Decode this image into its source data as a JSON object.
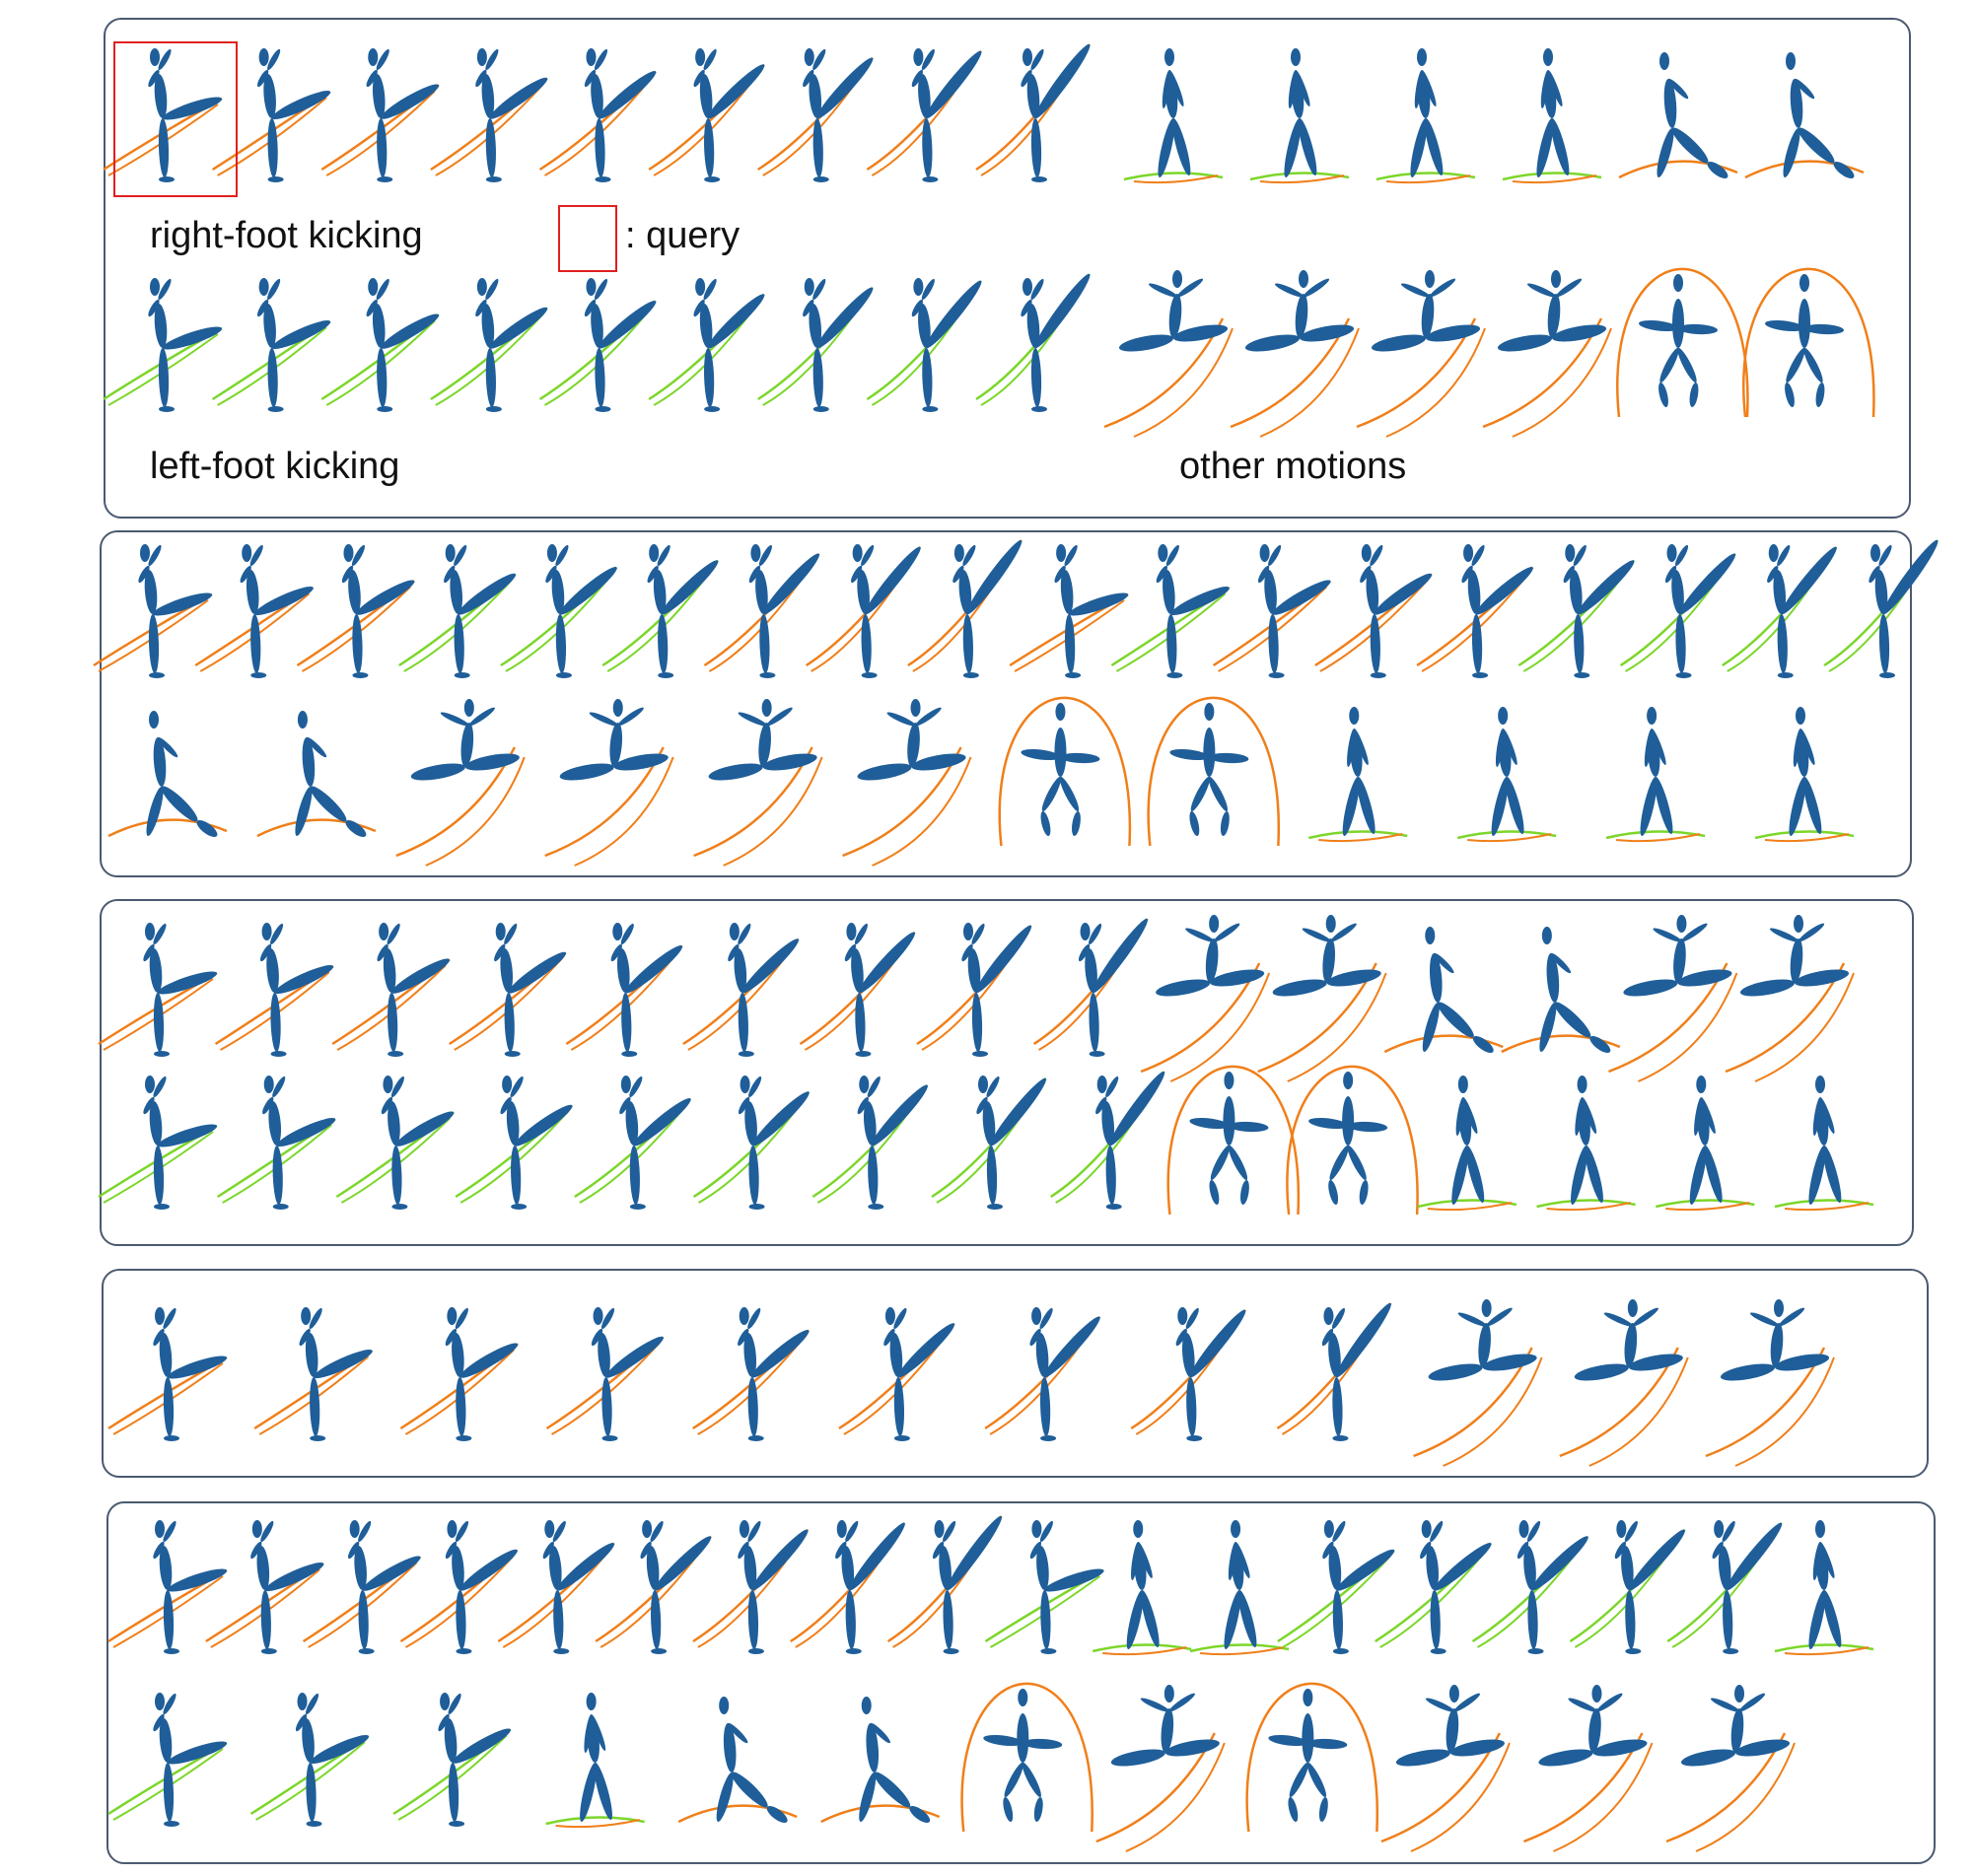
{
  "colors": {
    "figure": "#1f5e99",
    "right_trail": "#f07f1a",
    "left_trail": "#7cd62a",
    "panel_border": "#4a5a70",
    "query_border": "#e02020"
  },
  "legend": {
    "right_label": "right-foot kicking",
    "left_label": "left-foot kicking",
    "other_label": "other motions",
    "query_label": ": query"
  },
  "panels": [
    {
      "rows": [
        {
          "kinds": [
            "R",
            "R",
            "R",
            "R",
            "R",
            "R",
            "R",
            "R",
            "R"
          ]
        },
        {
          "kinds": [
            "L",
            "L",
            "L",
            "L",
            "L",
            "L",
            "L",
            "L",
            "L"
          ]
        }
      ],
      "others": [
        {
          "kinds": [
            "W",
            "W",
            "W",
            "W",
            "C",
            "C"
          ]
        },
        {
          "kinds": [
            "J",
            "J",
            "J",
            "J",
            "A",
            "A"
          ]
        }
      ]
    },
    {
      "rows": [
        {
          "kinds": [
            "R",
            "R",
            "R",
            "L",
            "L",
            "L",
            "R",
            "R",
            "R",
            "R",
            "L",
            "R",
            "R",
            "R",
            "L",
            "L",
            "L",
            "L"
          ]
        },
        {
          "kinds": [
            "C",
            "C",
            "J",
            "J",
            "J",
            "J",
            "A",
            "A",
            "W",
            "W",
            "W",
            "W"
          ]
        }
      ]
    },
    {
      "rows": [
        {
          "kinds": [
            "R",
            "R",
            "R",
            "R",
            "R",
            "R",
            "R",
            "R",
            "R",
            "J",
            "J",
            "C",
            "C",
            "J",
            "J"
          ]
        },
        {
          "kinds": [
            "L",
            "L",
            "L",
            "L",
            "L",
            "L",
            "L",
            "L",
            "L",
            "A",
            "A",
            "W",
            "W",
            "W",
            "W"
          ]
        }
      ]
    },
    {
      "rows": [
        {
          "kinds": [
            "R",
            "R",
            "R",
            "R",
            "R",
            "R",
            "R",
            "R",
            "R",
            "J",
            "J",
            "J"
          ]
        }
      ]
    },
    {
      "rows": [
        {
          "kinds": [
            "R",
            "R",
            "R",
            "R",
            "R",
            "R",
            "R",
            "R",
            "R",
            "L",
            "W",
            "W",
            "L",
            "L",
            "L",
            "L",
            "L",
            "W"
          ]
        },
        {
          "kinds": [
            "L",
            "L",
            "L",
            "W",
            "C",
            "C",
            "A",
            "J",
            "A",
            "J",
            "J",
            "J"
          ]
        }
      ]
    }
  ]
}
